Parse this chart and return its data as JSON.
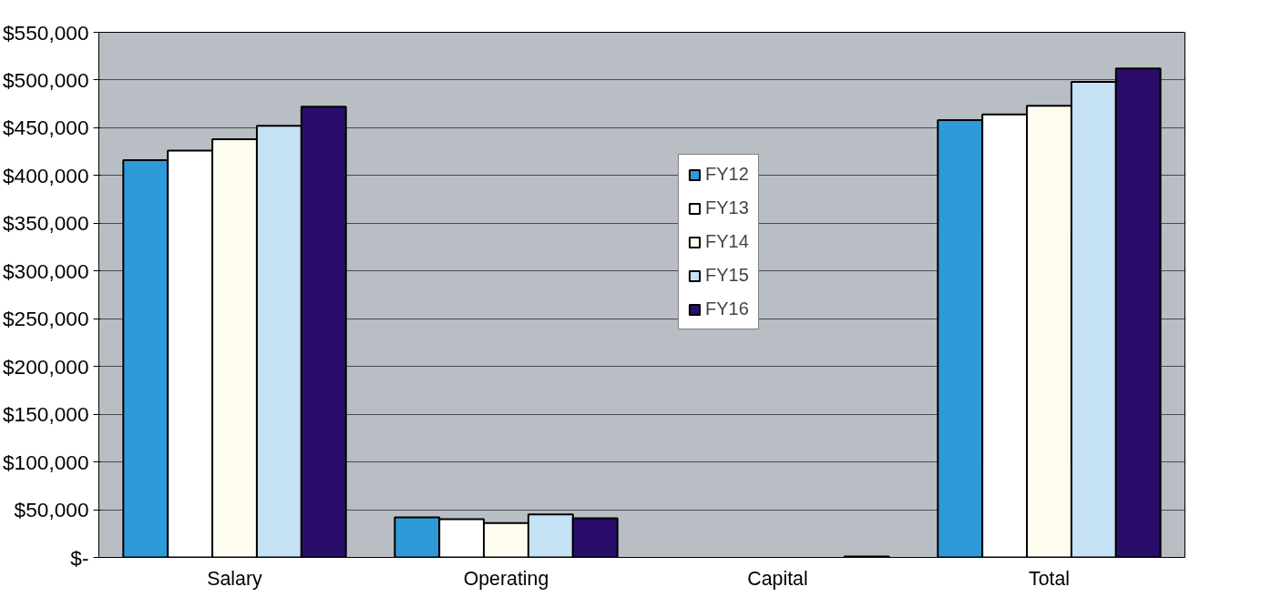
{
  "chart_data": {
    "type": "bar",
    "categories": [
      "Salary",
      "Operating",
      "Capital",
      "Total"
    ],
    "series": [
      {
        "name": "FY12",
        "color": "#2f9ad8",
        "values": [
          416000,
          42000,
          null,
          458000
        ]
      },
      {
        "name": "FY13",
        "color": "#ffffff",
        "values": [
          426000,
          40000,
          null,
          464000
        ]
      },
      {
        "name": "FY14",
        "color": "#fffdf0",
        "values": [
          438000,
          36000,
          null,
          473000
        ]
      },
      {
        "name": "FY15",
        "color": "#c5e3f5",
        "values": [
          452000,
          45000,
          null,
          498000
        ]
      },
      {
        "name": "FY16",
        "color": "#2a0d6b",
        "values": [
          472000,
          41000,
          1000,
          512000
        ]
      }
    ],
    "ylim": [
      0,
      550000
    ],
    "yticks": [
      {
        "value": 0,
        "label": "$-"
      },
      {
        "value": 50000,
        "label": "$50,000"
      },
      {
        "value": 100000,
        "label": "$100,000"
      },
      {
        "value": 150000,
        "label": "$150,000"
      },
      {
        "value": 200000,
        "label": "$200,000"
      },
      {
        "value": 250000,
        "label": "$250,000"
      },
      {
        "value": 300000,
        "label": "$300,000"
      },
      {
        "value": 350000,
        "label": "$350,000"
      },
      {
        "value": 400000,
        "label": "$400,000"
      },
      {
        "value": 450000,
        "label": "$450,000"
      },
      {
        "value": 500000,
        "label": "$500,000"
      },
      {
        "value": 550000,
        "label": "$550,000"
      }
    ],
    "grid": "y",
    "legend": "top"
  }
}
